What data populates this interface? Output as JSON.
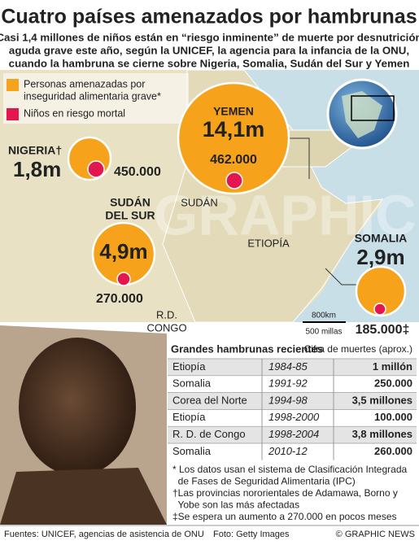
{
  "header": {
    "title": "Cuatro países amenazados por hambrunas",
    "subtitle": [
      "Casi 1,4 millones de niños están en “riesgo inminente” de muerte por desnutrición",
      "aguda grave este año, según la UNICEF, la agencia para la infancia de la ONU,",
      "cuando la hambruna se cierne sobre Nigeria, Somalia, Sudán del Sur y Yemen"
    ]
  },
  "legend": {
    "items": [
      {
        "label": [
          "Personas amenazadas por",
          "inseguridad alimentaria grave*"
        ],
        "color": "#f7a21b"
      },
      {
        "label": [
          "Niños en riesgo mortal"
        ],
        "color": "#e3164f"
      }
    ]
  },
  "countries": [
    {
      "name": [
        "NIGERIA†"
      ],
      "affected": "1,8m",
      "children": "450.000"
    },
    {
      "name": [
        "YEMEN"
      ],
      "affected": "14,1m",
      "children": "462.000"
    },
    {
      "name": [
        "SUDÁN",
        "DEL SUR"
      ],
      "affected": "4,9m",
      "children": "270.000"
    },
    {
      "name": [
        "SOMALIA"
      ],
      "affected": "2,9m",
      "children": "185.000‡"
    }
  ],
  "map_labels": {
    "sudan": "SUDÁN",
    "ethiopia": "ETIOPÍA",
    "congo": [
      "R.D.",
      "CONGO"
    ]
  },
  "scale": {
    "km": "800km",
    "miles": "500 millas"
  },
  "watermark": "GRAPHIC NEWS",
  "table": {
    "title": "Grandes hambrunas recientes",
    "subtitle": "Cifra de muertes (aprox.)",
    "rows": [
      [
        "Etiopía",
        "1984-85",
        "1 millón"
      ],
      [
        "Somalia",
        "1991-92",
        "250.000"
      ],
      [
        "Corea del Norte",
        "1994-98",
        "3,5 millones"
      ],
      [
        "Etiopía",
        "1998-2000",
        "100.000"
      ],
      [
        "R. D. de Congo",
        "1998-2004",
        "3,8 millones"
      ],
      [
        "Somalia",
        "2010-12",
        "260.000"
      ]
    ]
  },
  "notes": [
    [
      "* Los datos usan el sistema de Clasificación Integrada",
      "  de Fases de Seguridad Alimentaria (IPC)"
    ],
    [
      "†Las provincias nororientales de Adamawa, Borno y",
      "  Yobe son las más afectadas"
    ],
    [
      "‡Se espera un aumento a 270.000 en pocos meses"
    ]
  ],
  "footer": {
    "sources": "Fuentes: UNICEF, agencias de asistencia de ONU",
    "photo": "Foto: Getty Images",
    "credit": "© GRAPHIC NEWS"
  }
}
